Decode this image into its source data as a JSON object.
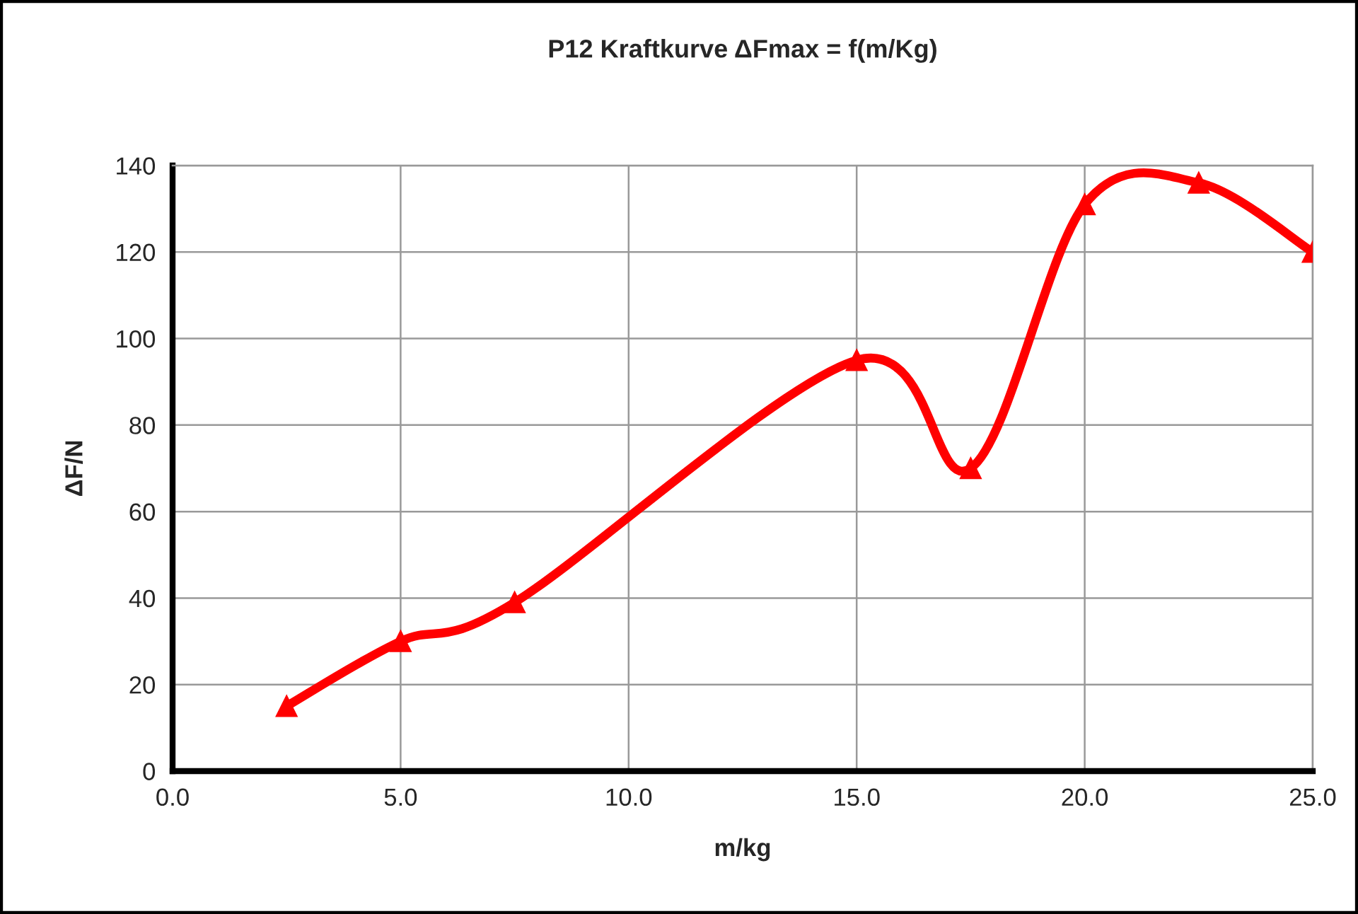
{
  "chart_data": {
    "type": "line",
    "title": "P12 Kraftkurve ΔFmax = f(m/Kg)",
    "xlabel": "m/kg",
    "ylabel": "ΔF/N",
    "x": [
      2.5,
      5,
      7.5,
      15,
      17.5,
      20,
      22.5,
      25
    ],
    "series": [
      {
        "color": "#ff0000",
        "values": [
          15,
          30,
          39,
          95,
          70,
          131,
          136,
          120
        ]
      }
    ],
    "xlim": [
      0,
      25
    ],
    "ylim": [
      0,
      140
    ],
    "xticks": [
      {
        "value": 0,
        "label": "0.0"
      },
      {
        "value": 5,
        "label": "5.0"
      },
      {
        "value": 10,
        "label": "10.0"
      },
      {
        "value": 15,
        "label": "15.0"
      },
      {
        "value": 20,
        "label": "20.0"
      },
      {
        "value": 25,
        "label": "25.0"
      }
    ],
    "yticks": [
      0,
      20,
      40,
      60,
      80,
      100,
      120,
      140
    ],
    "grid": true,
    "marker": "triangle",
    "line_style": "solid"
  }
}
